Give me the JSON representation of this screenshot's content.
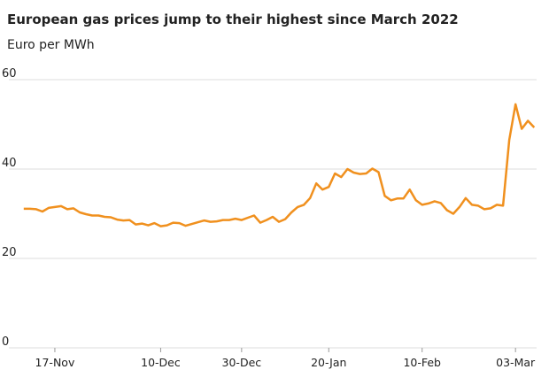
{
  "chart_data": {
    "type": "line",
    "title": "European gas prices jump to their highest since March 2022",
    "subtitle": "Euro per MWh",
    "categories": [
      "10-Nov",
      "11-Nov",
      "12-Nov",
      "13-Nov",
      "14-Nov",
      "17-Nov",
      "18-Nov",
      "19-Nov",
      "20-Nov",
      "21-Nov",
      "24-Nov",
      "25-Nov",
      "26-Nov",
      "27-Nov",
      "28-Nov",
      "01-Dec",
      "02-Dec",
      "03-Dec",
      "04-Dec",
      "05-Dec",
      "08-Dec",
      "09-Dec",
      "10-Dec",
      "11-Dec",
      "12-Dec",
      "15-Dec",
      "16-Dec",
      "17-Dec",
      "18-Dec",
      "19-Dec",
      "22-Dec",
      "23-Dec",
      "24-Dec",
      "26-Dec",
      "29-Dec",
      "30-Dec",
      "31-Dec",
      "02-Jan",
      "05-Jan",
      "06-Jan",
      "07-Jan",
      "08-Jan",
      "09-Jan",
      "12-Jan",
      "13-Jan",
      "14-Jan",
      "15-Jan",
      "16-Jan",
      "19-Jan",
      "20-Jan",
      "21-Jan",
      "22-Jan",
      "23-Jan",
      "26-Jan",
      "27-Jan",
      "28-Jan",
      "29-Jan",
      "30-Jan",
      "02-Feb",
      "03-Feb",
      "04-Feb",
      "05-Feb",
      "06-Feb",
      "09-Feb",
      "10-Feb",
      "11-Feb",
      "12-Feb",
      "13-Feb",
      "16-Feb",
      "17-Feb",
      "18-Feb",
      "19-Feb",
      "20-Feb",
      "23-Feb",
      "24-Feb",
      "25-Feb",
      "26-Feb",
      "27-Feb",
      "02-Mar",
      "03-Mar",
      "04-Mar",
      "05-Mar",
      "06-Mar"
    ],
    "series": [
      {
        "name": "Gas price",
        "color": "#f0901e",
        "values": [
          31.1,
          31.1,
          31.0,
          30.5,
          31.3,
          31.5,
          31.7,
          31.0,
          31.2,
          30.3,
          29.9,
          29.6,
          29.6,
          29.3,
          29.2,
          28.7,
          28.5,
          28.6,
          27.6,
          27.8,
          27.4,
          27.9,
          27.2,
          27.4,
          28.0,
          27.9,
          27.3,
          27.7,
          28.1,
          28.5,
          28.2,
          28.3,
          28.6,
          28.6,
          28.9,
          28.6,
          29.1,
          29.6,
          28.0,
          28.6,
          29.3,
          28.2,
          28.8,
          30.3,
          31.5,
          32.0,
          33.5,
          36.8,
          35.4,
          36.0,
          39.0,
          38.2,
          40.0,
          39.2,
          38.9,
          39.0,
          40.1,
          39.3,
          34.0,
          33.0,
          33.4,
          33.4,
          35.4,
          33.0,
          32.0,
          32.3,
          32.8,
          32.4,
          30.8,
          30.0,
          31.5,
          33.5,
          32.0,
          31.8,
          31.0,
          31.2,
          32.0,
          31.8,
          46.5,
          54.5,
          49.0,
          50.8,
          49.3
        ]
      }
    ],
    "xticks": [
      "17-Nov",
      "10-Dec",
      "30-Dec",
      "20-Jan",
      "10-Feb",
      "03-Mar"
    ],
    "ylim": [
      0,
      60
    ],
    "yticks": [
      0,
      20,
      40,
      60
    ],
    "grid": true
  }
}
